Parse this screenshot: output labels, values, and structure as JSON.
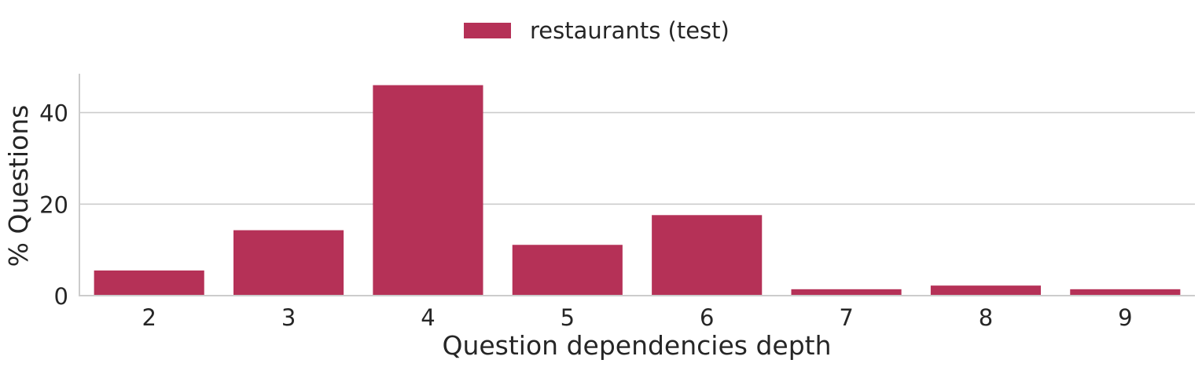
{
  "chart_data": {
    "type": "bar",
    "title": "",
    "xlabel": "Question dependencies depth",
    "ylabel": "% Questions",
    "categories": [
      "2",
      "3",
      "4",
      "5",
      "6",
      "7",
      "8",
      "9"
    ],
    "series": [
      {
        "name": "restaurants (test)",
        "values": [
          5.5,
          14.3,
          46.0,
          11.1,
          17.6,
          1.4,
          2.2,
          1.4
        ]
      }
    ],
    "ylim": [
      0,
      48.5
    ],
    "yticks": [
      0,
      20,
      40
    ],
    "grid": "horizontal",
    "legend_position": "top-center",
    "colors": {
      "bar": "#b53157",
      "grid": "#cccccc",
      "axis": "#cccccc",
      "text": "#262626"
    }
  }
}
